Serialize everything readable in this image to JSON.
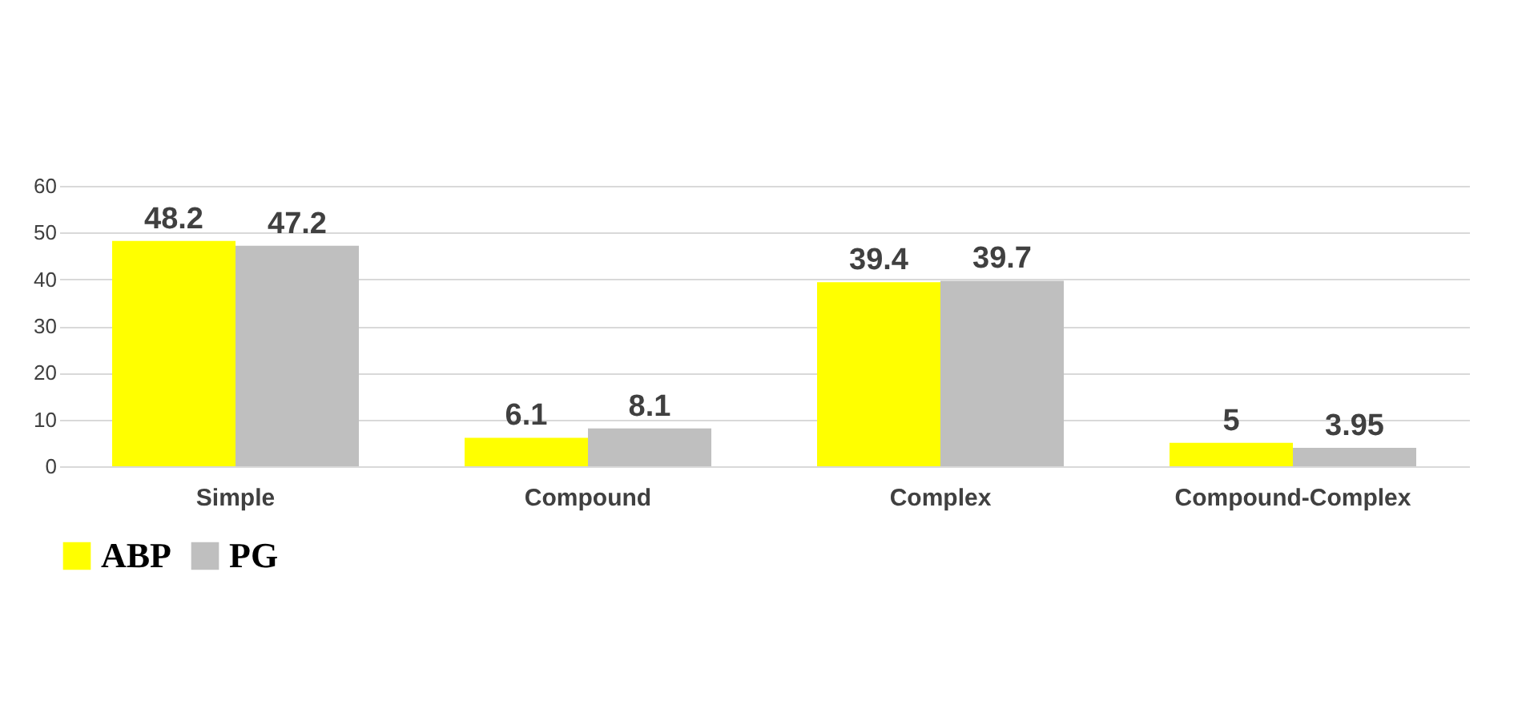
{
  "chart_data": {
    "type": "bar",
    "categories": [
      "Simple",
      "Compound",
      "Complex",
      "Compound-Complex"
    ],
    "series": [
      {
        "name": "ABP",
        "color": "#ffff00",
        "values": [
          48.2,
          6.1,
          39.4,
          5
        ]
      },
      {
        "name": "PG",
        "color": "#bfbfbf",
        "values": [
          47.2,
          8.1,
          39.7,
          3.95
        ]
      }
    ],
    "ylim": [
      0,
      60
    ],
    "yticks": [
      0,
      10,
      20,
      30,
      40,
      50,
      60
    ],
    "grid": "y",
    "legend": "bottom",
    "data_labels": true
  }
}
